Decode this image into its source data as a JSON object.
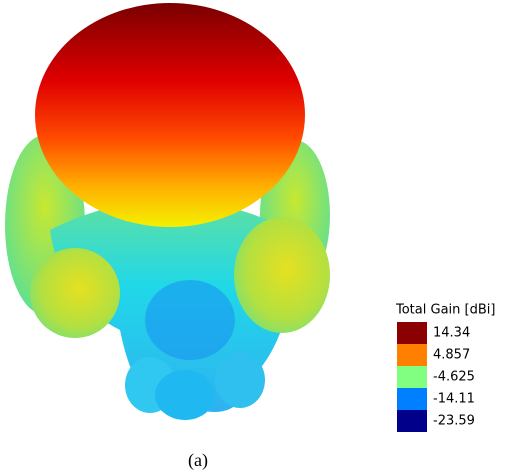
{
  "figure": {
    "caption": "(a)",
    "legend": {
      "title": "Total Gain [dBi]",
      "items": [
        {
          "label": "14.34",
          "color": "#8b0000"
        },
        {
          "label": "4.857",
          "color": "#ff8000"
        },
        {
          "label": "-4.625",
          "color": "#80ff80"
        },
        {
          "label": "-14.11",
          "color": "#0080ff"
        },
        {
          "label": "-23.59",
          "color": "#00008b"
        }
      ]
    }
  }
}
